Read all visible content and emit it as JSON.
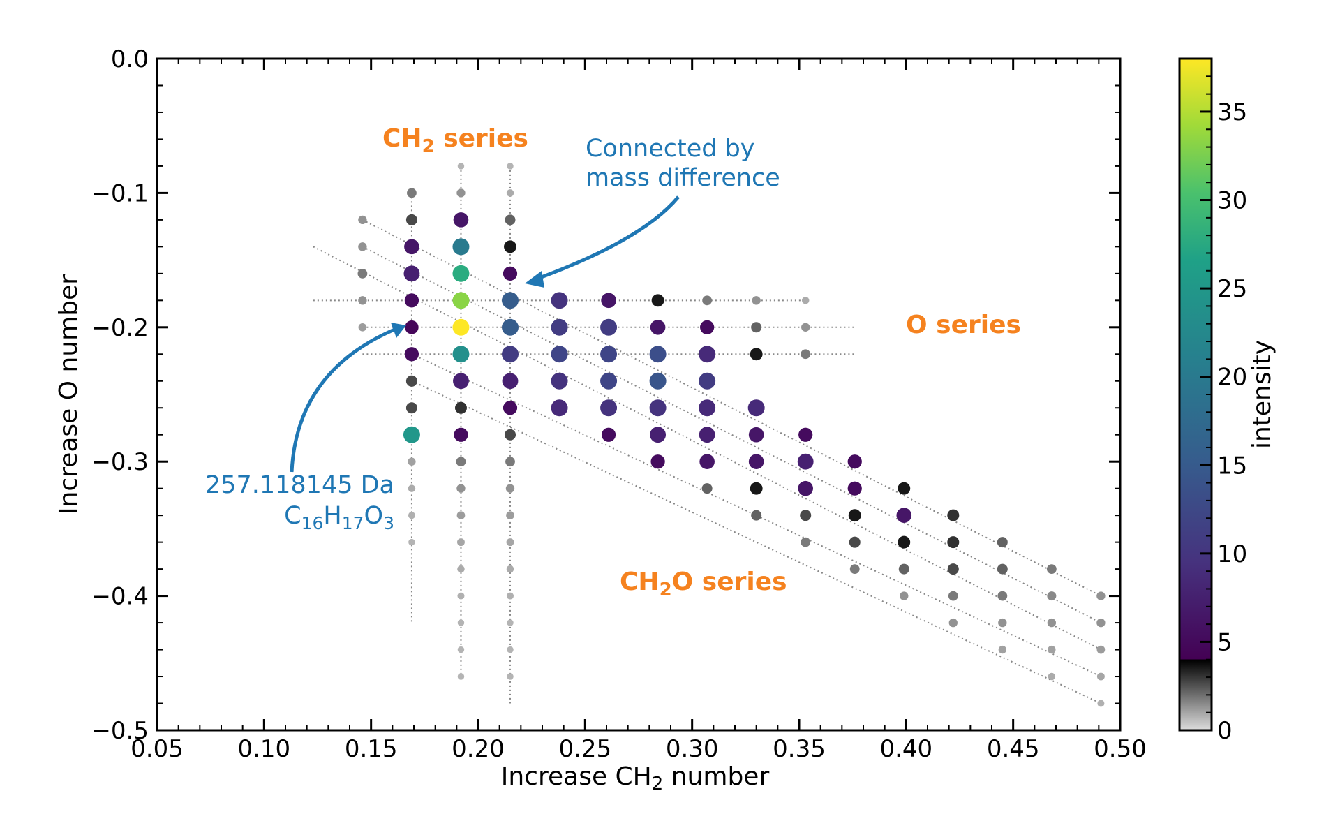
{
  "chart_data": {
    "type": "scatter",
    "xlabel": "Increase CH2 number",
    "xlabel_main": "Increase CH",
    "xlabel_sub": "2",
    "xlabel_tail": " number",
    "ylabel": "Increase O number",
    "xlim": [
      0.05,
      0.5
    ],
    "ylim": [
      -0.5,
      0.0
    ],
    "x_ticks": [
      "0.05",
      "0.10",
      "0.15",
      "0.20",
      "0.25",
      "0.30",
      "0.35",
      "0.40",
      "0.45",
      "0.50"
    ],
    "y_ticks": [
      "0.0",
      "−0.1",
      "−0.2",
      "−0.3",
      "−0.4",
      "−0.5"
    ],
    "colorbar": {
      "label": "intensity",
      "range": [
        0,
        38
      ],
      "ticks": [
        "0",
        "5",
        "10",
        "15",
        "20",
        "25",
        "30",
        "35"
      ],
      "colormap": "grey for 0–4, viridis above 4"
    },
    "series_labels": {
      "ch2": {
        "main": "CH",
        "sub": "2",
        "tail": " series",
        "color": "#f5821f"
      },
      "o": {
        "main": "O series",
        "color": "#f5821f"
      },
      "ch2o": {
        "main": "CH",
        "sub": "2",
        "tail": "O series",
        "color": "#f5821f"
      }
    },
    "annotations": {
      "connected_line1": "Connected by",
      "connected_line2": "mass difference",
      "mass": "257.118145 Da",
      "formula_parts": [
        "C",
        "16",
        "H",
        "17",
        "O",
        "3"
      ],
      "color": "#1f77b4"
    },
    "points": [
      [
        0.146,
        -0.12,
        1
      ],
      [
        0.146,
        -0.14,
        1
      ],
      [
        0.146,
        -0.16,
        1.5
      ],
      [
        0.146,
        -0.18,
        1
      ],
      [
        0.146,
        -0.2,
        0.8
      ],
      [
        0.169,
        -0.1,
        1.5
      ],
      [
        0.169,
        -0.12,
        2.5
      ],
      [
        0.169,
        -0.14,
        6
      ],
      [
        0.169,
        -0.16,
        7
      ],
      [
        0.169,
        -0.18,
        5
      ],
      [
        0.169,
        -0.2,
        4.5
      ],
      [
        0.169,
        -0.22,
        5
      ],
      [
        0.169,
        -0.24,
        2.5
      ],
      [
        0.169,
        -0.26,
        2.5
      ],
      [
        0.169,
        -0.28,
        22
      ],
      [
        0.169,
        -0.3,
        0.7
      ],
      [
        0.169,
        -0.32,
        0.5
      ],
      [
        0.169,
        -0.34,
        0.4
      ],
      [
        0.169,
        -0.36,
        0.3
      ],
      [
        0.192,
        -0.08,
        0.3
      ],
      [
        0.192,
        -0.1,
        1
      ],
      [
        0.192,
        -0.12,
        6
      ],
      [
        0.192,
        -0.14,
        18
      ],
      [
        0.192,
        -0.16,
        25
      ],
      [
        0.192,
        -0.18,
        32
      ],
      [
        0.192,
        -0.2,
        38
      ],
      [
        0.192,
        -0.22,
        21
      ],
      [
        0.192,
        -0.24,
        7
      ],
      [
        0.192,
        -0.26,
        3
      ],
      [
        0.192,
        -0.28,
        5
      ],
      [
        0.192,
        -0.3,
        1.5
      ],
      [
        0.192,
        -0.32,
        1
      ],
      [
        0.192,
        -0.34,
        0.8
      ],
      [
        0.192,
        -0.36,
        0.6
      ],
      [
        0.192,
        -0.38,
        0.5
      ],
      [
        0.192,
        -0.4,
        0.4
      ],
      [
        0.192,
        -0.42,
        0.3
      ],
      [
        0.192,
        -0.44,
        0.3
      ],
      [
        0.192,
        -0.46,
        0.3
      ],
      [
        0.215,
        -0.08,
        0.3
      ],
      [
        0.215,
        -0.1,
        0.5
      ],
      [
        0.215,
        -0.12,
        2
      ],
      [
        0.215,
        -0.14,
        3.5
      ],
      [
        0.215,
        -0.16,
        5
      ],
      [
        0.215,
        -0.18,
        14
      ],
      [
        0.215,
        -0.2,
        14
      ],
      [
        0.215,
        -0.22,
        10
      ],
      [
        0.215,
        -0.24,
        7
      ],
      [
        0.215,
        -0.26,
        5
      ],
      [
        0.215,
        -0.28,
        2.5
      ],
      [
        0.215,
        -0.3,
        1.5
      ],
      [
        0.215,
        -0.32,
        1
      ],
      [
        0.215,
        -0.34,
        0.8
      ],
      [
        0.215,
        -0.36,
        0.6
      ],
      [
        0.215,
        -0.38,
        0.5
      ],
      [
        0.215,
        -0.4,
        0.4
      ],
      [
        0.215,
        -0.42,
        0.3
      ],
      [
        0.215,
        -0.44,
        0.3
      ],
      [
        0.215,
        -0.46,
        0.3
      ],
      [
        0.238,
        -0.18,
        9
      ],
      [
        0.238,
        -0.2,
        10
      ],
      [
        0.238,
        -0.22,
        11
      ],
      [
        0.238,
        -0.24,
        9
      ],
      [
        0.238,
        -0.26,
        8
      ],
      [
        0.261,
        -0.18,
        6
      ],
      [
        0.261,
        -0.2,
        10
      ],
      [
        0.261,
        -0.22,
        11
      ],
      [
        0.261,
        -0.24,
        11
      ],
      [
        0.261,
        -0.26,
        9
      ],
      [
        0.261,
        -0.28,
        5
      ],
      [
        0.284,
        -0.18,
        3.5
      ],
      [
        0.284,
        -0.2,
        6
      ],
      [
        0.284,
        -0.22,
        12
      ],
      [
        0.284,
        -0.24,
        13
      ],
      [
        0.284,
        -0.26,
        9
      ],
      [
        0.284,
        -0.28,
        7
      ],
      [
        0.284,
        -0.3,
        5
      ],
      [
        0.307,
        -0.18,
        1.5
      ],
      [
        0.307,
        -0.2,
        5
      ],
      [
        0.307,
        -0.22,
        8
      ],
      [
        0.307,
        -0.24,
        10
      ],
      [
        0.307,
        -0.26,
        8
      ],
      [
        0.307,
        -0.28,
        7
      ],
      [
        0.307,
        -0.3,
        6
      ],
      [
        0.307,
        -0.32,
        2
      ],
      [
        0.33,
        -0.18,
        1
      ],
      [
        0.33,
        -0.2,
        2
      ],
      [
        0.33,
        -0.22,
        3.5
      ],
      [
        0.33,
        -0.26,
        8
      ],
      [
        0.33,
        -0.28,
        6
      ],
      [
        0.33,
        -0.3,
        6
      ],
      [
        0.33,
        -0.32,
        3.5
      ],
      [
        0.33,
        -0.34,
        2
      ],
      [
        0.353,
        -0.18,
        0.5
      ],
      [
        0.353,
        -0.2,
        1
      ],
      [
        0.353,
        -0.22,
        1.5
      ],
      [
        0.353,
        -0.28,
        5
      ],
      [
        0.353,
        -0.3,
        7
      ],
      [
        0.353,
        -0.32,
        6
      ],
      [
        0.353,
        -0.34,
        2.5
      ],
      [
        0.353,
        -0.36,
        1.5
      ],
      [
        0.376,
        -0.3,
        5
      ],
      [
        0.376,
        -0.32,
        5
      ],
      [
        0.376,
        -0.34,
        3.5
      ],
      [
        0.376,
        -0.36,
        2.5
      ],
      [
        0.376,
        -0.38,
        1.5
      ],
      [
        0.399,
        -0.32,
        3.5
      ],
      [
        0.399,
        -0.34,
        6
      ],
      [
        0.399,
        -0.36,
        3.5
      ],
      [
        0.399,
        -0.38,
        2
      ],
      [
        0.399,
        -0.4,
        1
      ],
      [
        0.422,
        -0.34,
        3
      ],
      [
        0.422,
        -0.36,
        3
      ],
      [
        0.422,
        -0.38,
        2.5
      ],
      [
        0.422,
        -0.4,
        1.5
      ],
      [
        0.422,
        -0.42,
        1
      ],
      [
        0.445,
        -0.36,
        2
      ],
      [
        0.445,
        -0.38,
        2
      ],
      [
        0.445,
        -0.4,
        1.5
      ],
      [
        0.445,
        -0.42,
        1
      ],
      [
        0.445,
        -0.44,
        0.7
      ],
      [
        0.468,
        -0.38,
        1.5
      ],
      [
        0.468,
        -0.4,
        1.2
      ],
      [
        0.468,
        -0.42,
        1
      ],
      [
        0.468,
        -0.44,
        0.7
      ],
      [
        0.468,
        -0.46,
        0.5
      ],
      [
        0.491,
        -0.4,
        1
      ],
      [
        0.491,
        -0.42,
        1
      ],
      [
        0.491,
        -0.44,
        0.8
      ],
      [
        0.491,
        -0.46,
        0.6
      ],
      [
        0.491,
        -0.48,
        0.4
      ]
    ],
    "vertical_series": [
      {
        "x": 0.169,
        "y_range": [
          -0.1,
          -0.42
        ]
      },
      {
        "x": 0.192,
        "y_range": [
          -0.08,
          -0.46
        ]
      },
      {
        "x": 0.215,
        "y_range": [
          -0.08,
          -0.48
        ]
      }
    ],
    "horizontal_series": [
      {
        "y": -0.18,
        "x_range": [
          0.123,
          0.353
        ]
      },
      {
        "y": -0.2,
        "x_range": [
          0.146,
          0.376
        ]
      },
      {
        "y": -0.22,
        "x_range": [
          0.146,
          0.376
        ]
      }
    ],
    "diagonal_series": [
      {
        "from": [
          0.146,
          -0.12
        ],
        "to": [
          0.491,
          -0.4
        ]
      },
      {
        "from": [
          0.146,
          -0.14
        ],
        "to": [
          0.491,
          -0.42
        ]
      },
      {
        "from": [
          0.123,
          -0.14
        ],
        "to": [
          0.491,
          -0.44
        ]
      },
      {
        "from": [
          0.169,
          -0.22
        ],
        "to": [
          0.491,
          -0.46
        ]
      },
      {
        "from": [
          0.169,
          -0.24
        ],
        "to": [
          0.491,
          -0.48
        ]
      }
    ]
  }
}
